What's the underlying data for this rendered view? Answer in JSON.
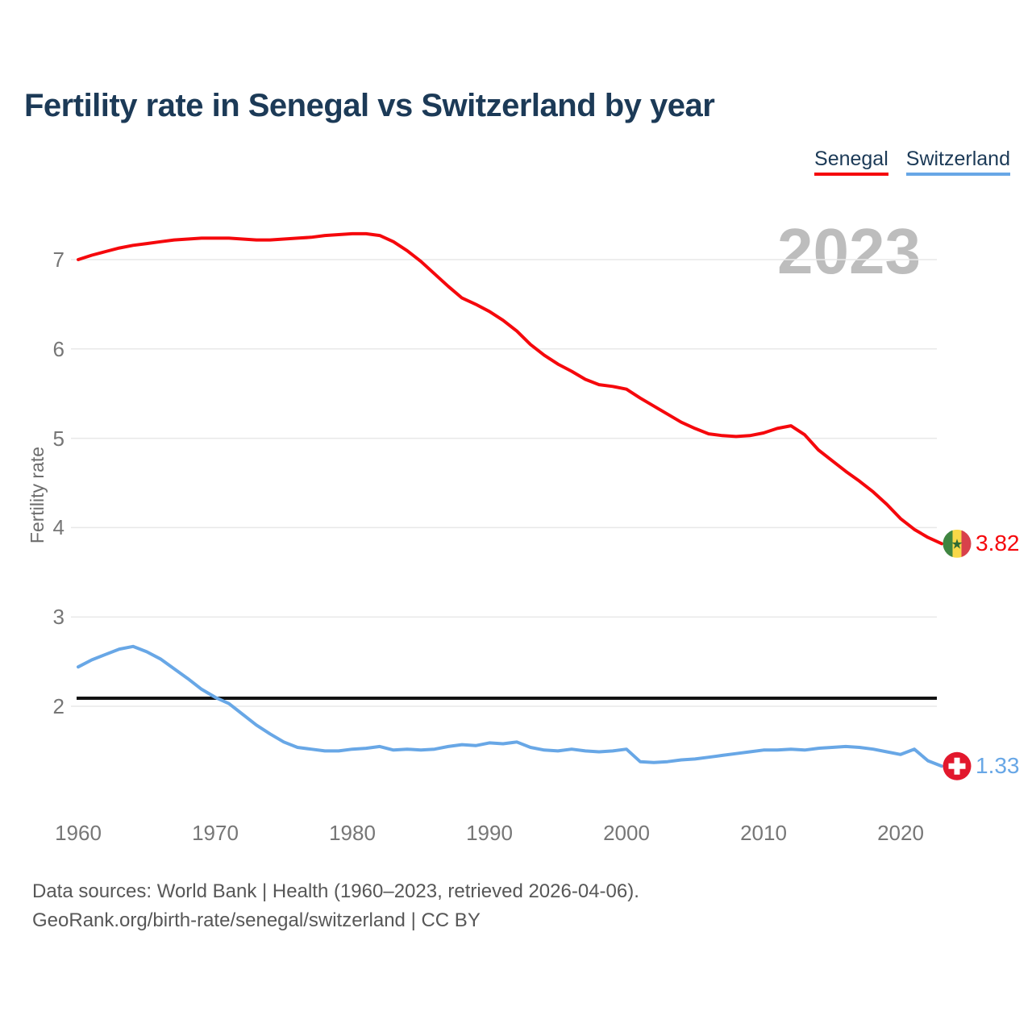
{
  "title": "Fertility rate in Senegal vs Switzerland by year",
  "watermark_year": "2023",
  "legend": [
    {
      "label": "Senegal",
      "color": "#f5080c"
    },
    {
      "label": "Switzerland",
      "color": "#68a7e6"
    }
  ],
  "y_axis": {
    "label": "Fertility rate",
    "ticks": [
      7,
      6,
      5,
      4,
      3,
      2
    ]
  },
  "x_axis": {
    "ticks": [
      1960,
      1970,
      1980,
      1990,
      2000,
      2010,
      2020
    ]
  },
  "annotations": {
    "replacement_line_value": 2.09
  },
  "end_labels": [
    {
      "series": "Senegal",
      "value": "3.82",
      "flag": "senegal-flag",
      "color": "#f5080c"
    },
    {
      "series": "Switzerland",
      "value": "1.33",
      "flag": "switzerland-flag",
      "color": "#68a7e6"
    }
  ],
  "footer": {
    "line1": "Data sources: World Bank | Health (1960–2023, retrieved 2026-04-06).",
    "line2": "GeoRank.org/birth-rate/senegal/switzerland | CC BY"
  },
  "chart_data": {
    "type": "line",
    "title": "Fertility rate in Senegal vs Switzerland by year",
    "xlabel": "",
    "ylabel": "Fertility rate",
    "x_range": [
      1960,
      2023
    ],
    "ylim": [
      1.1,
      7.45
    ],
    "grid": "horizontal",
    "legend_position": "top-right",
    "reference_line_y": 2.09,
    "x": [
      1960,
      1961,
      1962,
      1963,
      1964,
      1965,
      1966,
      1967,
      1968,
      1969,
      1970,
      1971,
      1972,
      1973,
      1974,
      1975,
      1976,
      1977,
      1978,
      1979,
      1980,
      1981,
      1982,
      1983,
      1984,
      1985,
      1986,
      1987,
      1988,
      1989,
      1990,
      1991,
      1992,
      1993,
      1994,
      1995,
      1996,
      1997,
      1998,
      1999,
      2000,
      2001,
      2002,
      2003,
      2004,
      2005,
      2006,
      2007,
      2008,
      2009,
      2010,
      2011,
      2012,
      2013,
      2014,
      2015,
      2016,
      2017,
      2018,
      2019,
      2020,
      2021,
      2022,
      2023
    ],
    "series": [
      {
        "name": "Senegal",
        "color": "#f5080c",
        "end_value": 3.82,
        "values": [
          7.0,
          7.05,
          7.09,
          7.13,
          7.16,
          7.18,
          7.2,
          7.22,
          7.23,
          7.24,
          7.24,
          7.24,
          7.23,
          7.22,
          7.22,
          7.23,
          7.24,
          7.25,
          7.27,
          7.28,
          7.29,
          7.29,
          7.27,
          7.2,
          7.1,
          6.98,
          6.84,
          6.7,
          6.57,
          6.5,
          6.42,
          6.32,
          6.2,
          6.05,
          5.93,
          5.83,
          5.75,
          5.66,
          5.6,
          5.58,
          5.55,
          5.45,
          5.36,
          5.27,
          5.18,
          5.11,
          5.05,
          5.03,
          5.02,
          5.03,
          5.06,
          5.11,
          5.14,
          5.04,
          4.87,
          4.75,
          4.63,
          4.52,
          4.4,
          4.26,
          4.1,
          3.98,
          3.89,
          3.82
        ]
      },
      {
        "name": "Switzerland",
        "color": "#68a7e6",
        "end_value": 1.33,
        "values": [
          2.44,
          2.52,
          2.58,
          2.64,
          2.67,
          2.61,
          2.53,
          2.42,
          2.31,
          2.19,
          2.1,
          2.03,
          1.91,
          1.79,
          1.69,
          1.6,
          1.54,
          1.52,
          1.5,
          1.5,
          1.52,
          1.53,
          1.55,
          1.51,
          1.52,
          1.51,
          1.52,
          1.55,
          1.57,
          1.56,
          1.59,
          1.58,
          1.6,
          1.54,
          1.51,
          1.5,
          1.52,
          1.5,
          1.49,
          1.5,
          1.52,
          1.38,
          1.37,
          1.38,
          1.4,
          1.41,
          1.43,
          1.45,
          1.47,
          1.49,
          1.51,
          1.51,
          1.52,
          1.51,
          1.53,
          1.54,
          1.55,
          1.54,
          1.52,
          1.49,
          1.46,
          1.52,
          1.39,
          1.33
        ]
      }
    ]
  }
}
